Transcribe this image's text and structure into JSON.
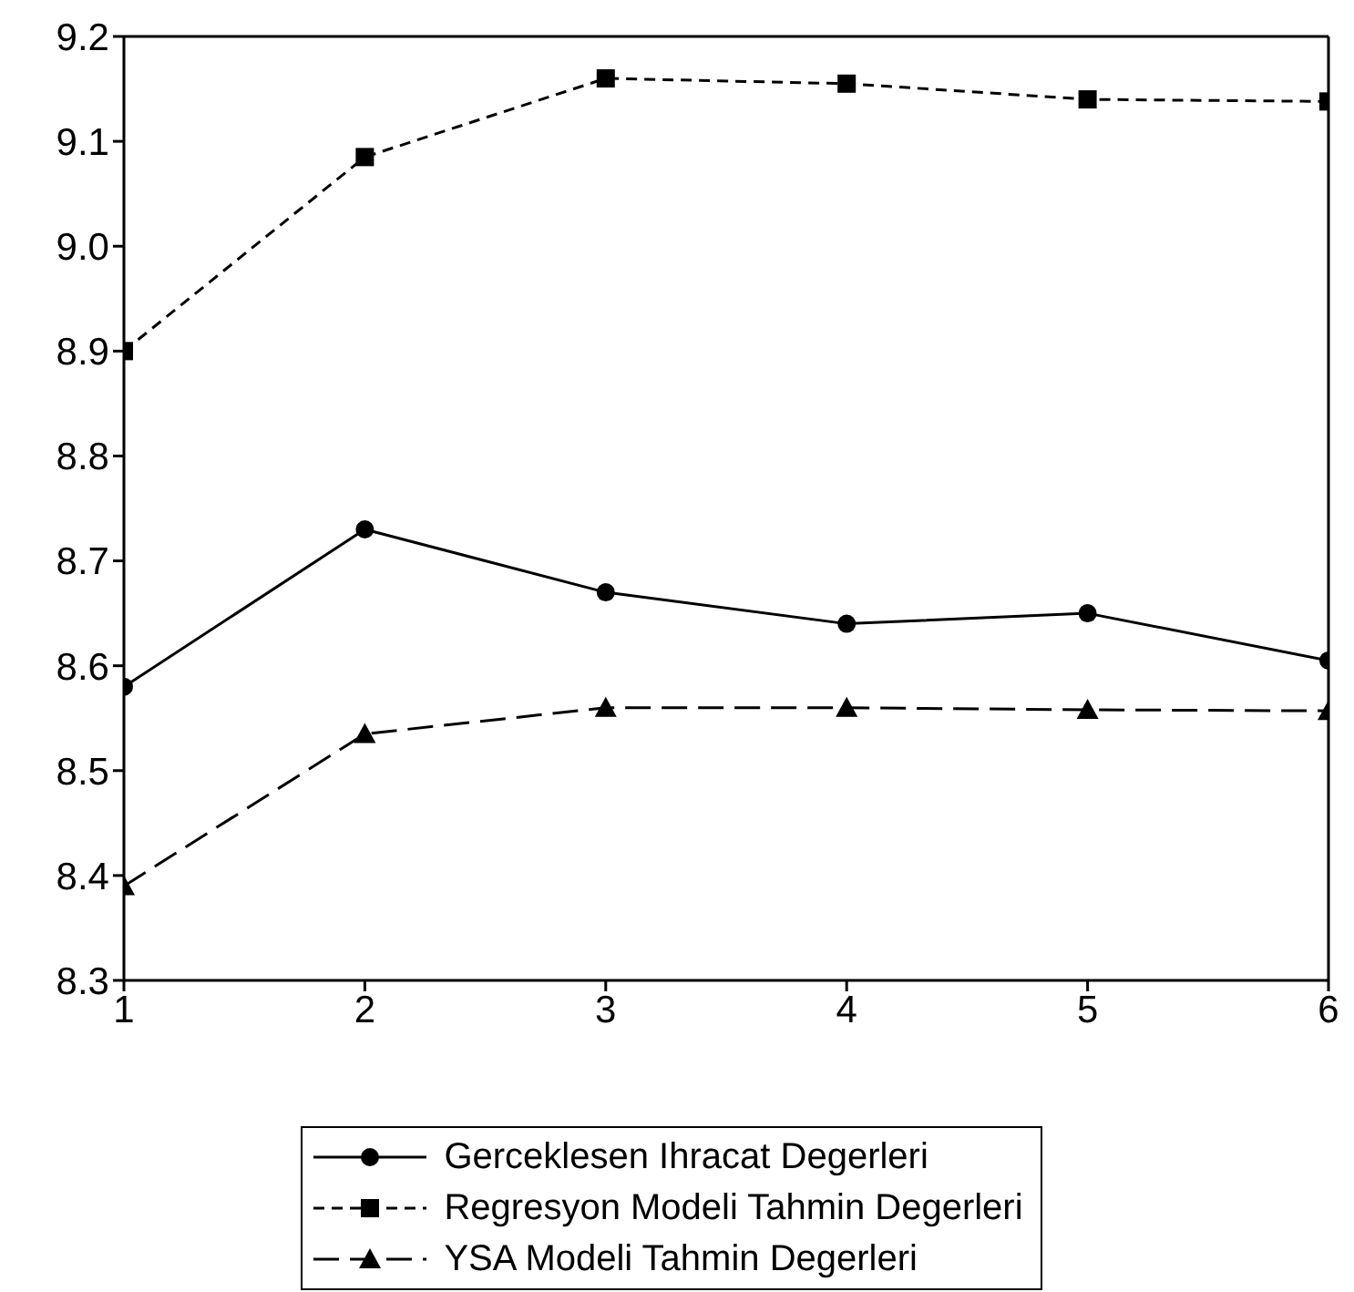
{
  "chart_data": {
    "type": "line",
    "x": [
      1,
      2,
      3,
      4,
      5,
      6
    ],
    "series": [
      {
        "name": "Gerceklesen Ihracat Degerleri",
        "color": "#000000",
        "marker": "circle",
        "line_style": "solid",
        "values": [
          8.58,
          8.73,
          8.67,
          8.64,
          8.65,
          8.605
        ]
      },
      {
        "name": "Regresyon Modeli Tahmin Degerleri",
        "color": "#000000",
        "marker": "square",
        "line_style": "dashed",
        "values": [
          8.9,
          9.085,
          9.16,
          9.155,
          9.14,
          9.138
        ]
      },
      {
        "name": "YSA Modeli Tahmin Degerleri",
        "color": "#000000",
        "marker": "triangle",
        "line_style": "dashed",
        "values": [
          8.39,
          8.535,
          8.56,
          8.56,
          8.558,
          8.557
        ]
      }
    ],
    "xlim": [
      1,
      6
    ],
    "xticks": [
      1,
      2,
      3,
      4,
      5,
      6
    ],
    "ylim": [
      8.3,
      9.2
    ],
    "yticks": [
      8.3,
      8.4,
      8.5,
      8.6,
      8.7,
      8.8,
      8.9,
      {
        "value": 9.0,
        "label": "9.0"
      },
      9.1,
      9.2
    ],
    "legend": "bottom"
  }
}
